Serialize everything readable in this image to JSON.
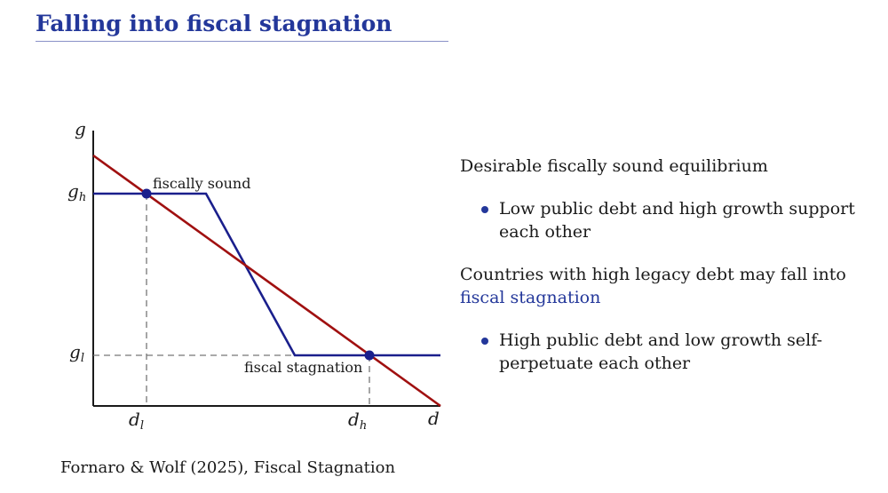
{
  "title": "Falling into fiscal stagnation",
  "chart_data": {
    "type": "line",
    "xlabel": "d",
    "ylabel": "g",
    "x_ticks": [
      {
        "base": "d",
        "sub": "l"
      },
      {
        "base": "d",
        "sub": "h"
      }
    ],
    "y_ticks": [
      {
        "base": "g",
        "sub": "h"
      },
      {
        "base": "g",
        "sub": "l"
      }
    ],
    "xlim": [
      0,
      1
    ],
    "ylim": [
      0,
      1
    ],
    "series": [
      {
        "color": "#1a1f8c",
        "points": [
          [
            0,
            0.8
          ],
          [
            0.33,
            0.8
          ],
          [
            0.58,
            0.19
          ],
          [
            1,
            0.19
          ]
        ]
      },
      {
        "color": "#a01010",
        "points": [
          [
            0,
            0.93
          ],
          [
            1,
            0
          ]
        ]
      }
    ],
    "equilibria": [
      {
        "label": "fiscally sound",
        "x": 0.15,
        "y": 0.8
      },
      {
        "label": "fiscal stagnation",
        "x": 0.79,
        "y": 0.19
      }
    ]
  },
  "right": {
    "p1": "Desirable fiscally sound equilibrium",
    "b1": "Low public debt and high growth support each other",
    "p2_text": "Countries with high legacy debt may fall into",
    "p2_highlight": "fiscal stagnation",
    "b2": "High public debt and low growth self-perpetuate each other"
  },
  "footer": "Fornaro & Wolf (2025), Fiscal Stagnation",
  "colors": {
    "title": "#23379a",
    "policy_curve": "#1a1f8c",
    "growth_curve": "#a01010"
  }
}
